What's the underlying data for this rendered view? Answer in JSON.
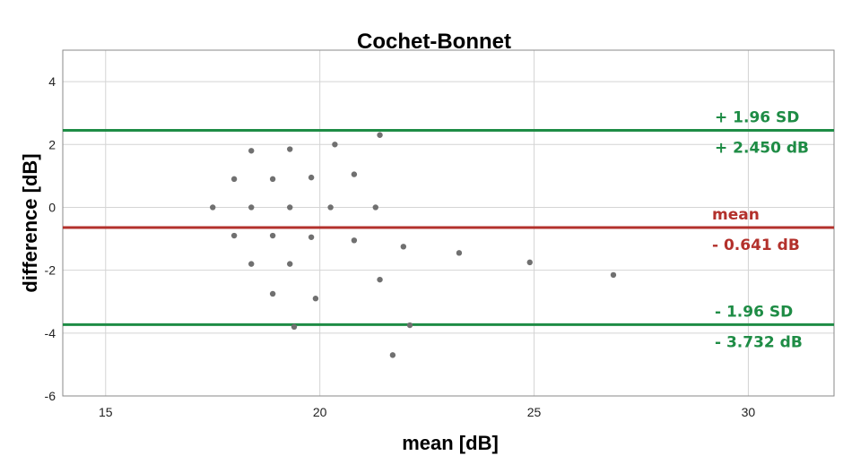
{
  "chart_data": {
    "type": "scatter",
    "title": "Cochet-Bonnet",
    "xlabel": "mean [dB]",
    "ylabel": "difference [dB]",
    "xlim": [
      14,
      32
    ],
    "ylim": [
      -6,
      5
    ],
    "x_ticks": [
      "15",
      "20",
      "25",
      "30"
    ],
    "y_ticks": [
      "4",
      "2",
      "0",
      "-2",
      "-4",
      "-6"
    ],
    "grid": true,
    "point_color": "#707070",
    "points": [
      {
        "x": 17.5,
        "y": 0.0
      },
      {
        "x": 18.0,
        "y": 0.9
      },
      {
        "x": 18.0,
        "y": -0.9
      },
      {
        "x": 18.4,
        "y": 1.8
      },
      {
        "x": 18.4,
        "y": 0.0
      },
      {
        "x": 18.4,
        "y": -1.8
      },
      {
        "x": 18.9,
        "y": 0.9
      },
      {
        "x": 18.9,
        "y": -0.9
      },
      {
        "x": 18.9,
        "y": -2.75
      },
      {
        "x": 19.3,
        "y": 1.85
      },
      {
        "x": 19.3,
        "y": 0.0
      },
      {
        "x": 19.3,
        "y": -1.8
      },
      {
        "x": 19.4,
        "y": -3.8
      },
      {
        "x": 19.8,
        "y": 0.95
      },
      {
        "x": 19.8,
        "y": -0.95
      },
      {
        "x": 19.9,
        "y": -2.9
      },
      {
        "x": 20.25,
        "y": 0.0
      },
      {
        "x": 20.35,
        "y": 2.0
      },
      {
        "x": 20.8,
        "y": 1.05
      },
      {
        "x": 20.8,
        "y": -1.05
      },
      {
        "x": 21.3,
        "y": 0.0
      },
      {
        "x": 21.4,
        "y": 2.3
      },
      {
        "x": 21.4,
        "y": -2.3
      },
      {
        "x": 21.7,
        "y": -4.7
      },
      {
        "x": 21.95,
        "y": -1.25
      },
      {
        "x": 22.1,
        "y": -3.75
      },
      {
        "x": 23.25,
        "y": -1.45
      },
      {
        "x": 24.9,
        "y": -1.75
      },
      {
        "x": 26.85,
        "y": -2.15
      }
    ],
    "reference_lines": [
      {
        "name": "+ 1.96 SD",
        "value": 2.45,
        "value_label": "+ 2.450 dB",
        "color": "#1e8c45"
      },
      {
        "name": "mean",
        "value": -0.641,
        "value_label": "- 0.641 dB",
        "color": "#b3312c"
      },
      {
        "name": "- 1.96 SD",
        "value": -3.732,
        "value_label": "- 3.732 dB",
        "color": "#1e8c45"
      }
    ]
  }
}
